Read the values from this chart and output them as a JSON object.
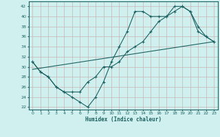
{
  "xlabel": "Humidex (Indice chaleur)",
  "bg_color": "#cff0ee",
  "grid_color": "#c8b4b4",
  "line_color": "#1a6060",
  "xlim": [
    -0.5,
    23.5
  ],
  "ylim": [
    21.5,
    43
  ],
  "yticks": [
    22,
    24,
    26,
    28,
    30,
    32,
    34,
    36,
    38,
    40,
    42
  ],
  "xticks": [
    0,
    1,
    2,
    3,
    4,
    5,
    6,
    7,
    8,
    9,
    10,
    11,
    12,
    13,
    14,
    15,
    16,
    17,
    18,
    19,
    20,
    21,
    22,
    23
  ],
  "line1_x": [
    0,
    1,
    2,
    3,
    4,
    5,
    6,
    7,
    8,
    9,
    10,
    11,
    12,
    13,
    14,
    15,
    16,
    17,
    18,
    19,
    20,
    21,
    22,
    23
  ],
  "line1_y": [
    31,
    29,
    28,
    26,
    25,
    24,
    23,
    22,
    24,
    27,
    31,
    34,
    37,
    41,
    41,
    40,
    40,
    40,
    41,
    42,
    41,
    38,
    36,
    35
  ],
  "line2_x": [
    0,
    1,
    2,
    3,
    4,
    5,
    6,
    7,
    8,
    9,
    10,
    11,
    12,
    13,
    14,
    15,
    16,
    17,
    18,
    19,
    20,
    21,
    22,
    23
  ],
  "line2_y": [
    31,
    29,
    28,
    26,
    25,
    25,
    25,
    27,
    28,
    30,
    30,
    31,
    33,
    34,
    35,
    37,
    39,
    40,
    42,
    42,
    41,
    37,
    36,
    35
  ],
  "line3_x": [
    0,
    23
  ],
  "line3_y": [
    29.5,
    35
  ]
}
